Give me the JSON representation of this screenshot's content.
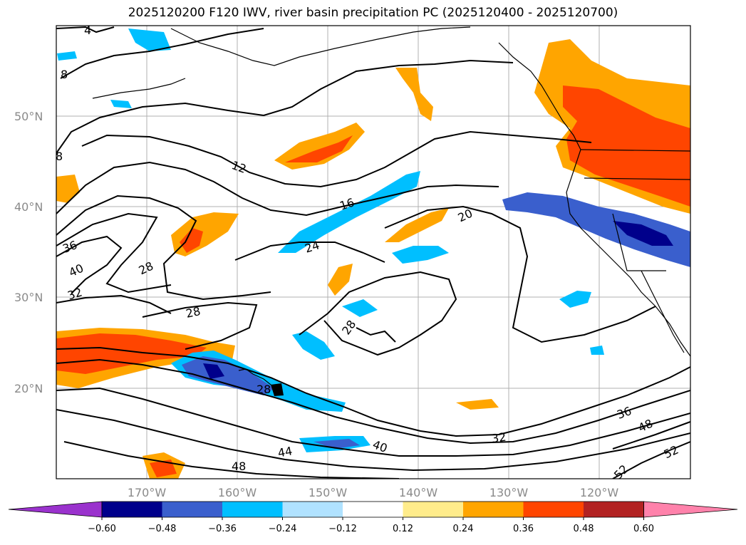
{
  "title": "2025120200 F120 IWV, river basin precipitation PC (2025120400 - 2025120700)",
  "map": {
    "lat_labels": [
      "50°N",
      "40°N",
      "30°N",
      "20°N"
    ],
    "lon_labels": [
      "170°W",
      "160°W",
      "150°W",
      "140°W",
      "130°W",
      "120°W"
    ],
    "contour_labels": [
      "4",
      "8",
      "8",
      "12",
      "16",
      "20",
      "24",
      "28",
      "28",
      "28",
      "28",
      "32",
      "32",
      "36",
      "36",
      "40",
      "40",
      "44",
      "48",
      "48",
      "52",
      "52"
    ],
    "colors": {
      "land_coast": "#000000",
      "contour": "#000000",
      "grid": "#b0b0b0"
    }
  },
  "colorbar": {
    "ticks": [
      "−0.60",
      "−0.48",
      "−0.36",
      "−0.24",
      "−0.12",
      "0.12",
      "0.24",
      "0.36",
      "0.48",
      "0.60"
    ],
    "colors": [
      "#9a32cd",
      "#00008b",
      "#3a5fcd",
      "#00bfff",
      "#b0e2ff",
      "#ffffff",
      "#ffec8b",
      "#ffa500",
      "#ff4500",
      "#b22222",
      "#ff82ab"
    ]
  }
}
